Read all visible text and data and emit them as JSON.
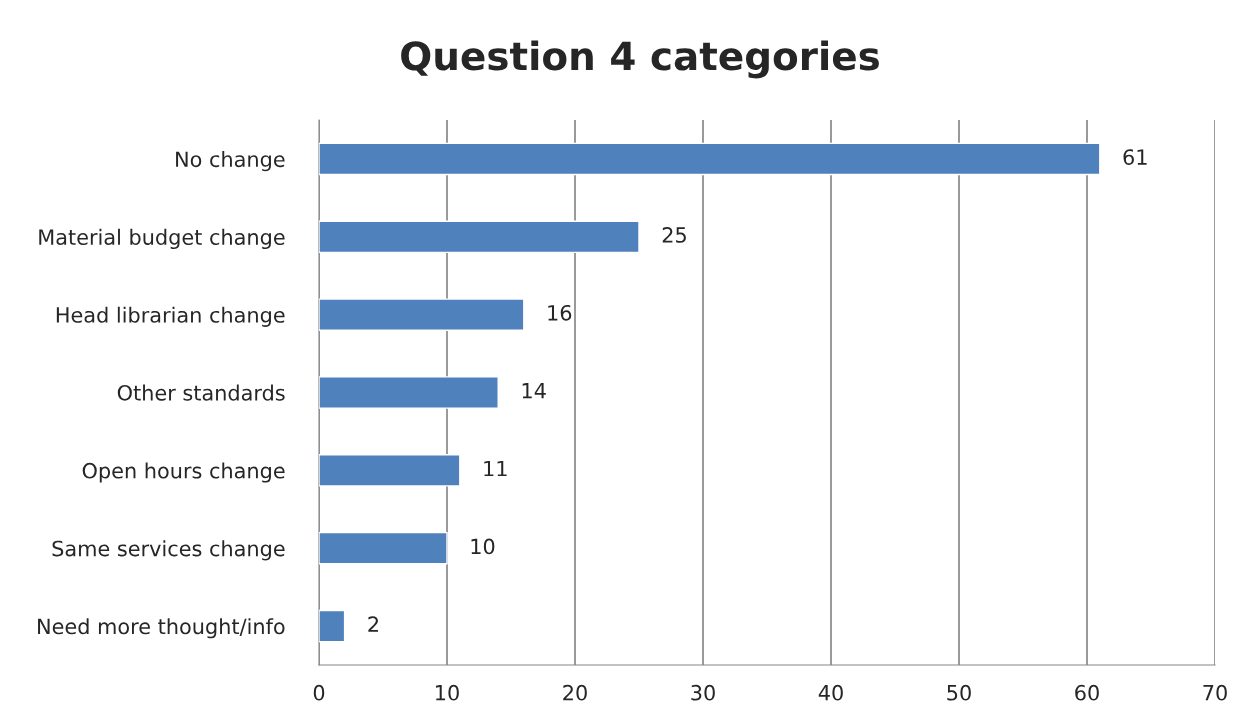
{
  "chart_data": {
    "type": "bar",
    "orientation": "horizontal",
    "title": "Question 4 categories",
    "categories": [
      "No change",
      "Material budget change",
      "Head librarian change",
      "Other standards",
      "Open hours change",
      "Same services change",
      "Need more thought/info"
    ],
    "values": [
      61,
      25,
      16,
      14,
      11,
      10,
      2
    ],
    "color": "#4f81bd",
    "xlim": [
      0,
      70
    ],
    "xticks": [
      0,
      10,
      20,
      30,
      40,
      50,
      60,
      70
    ],
    "grid": "x",
    "data_labels": true
  }
}
